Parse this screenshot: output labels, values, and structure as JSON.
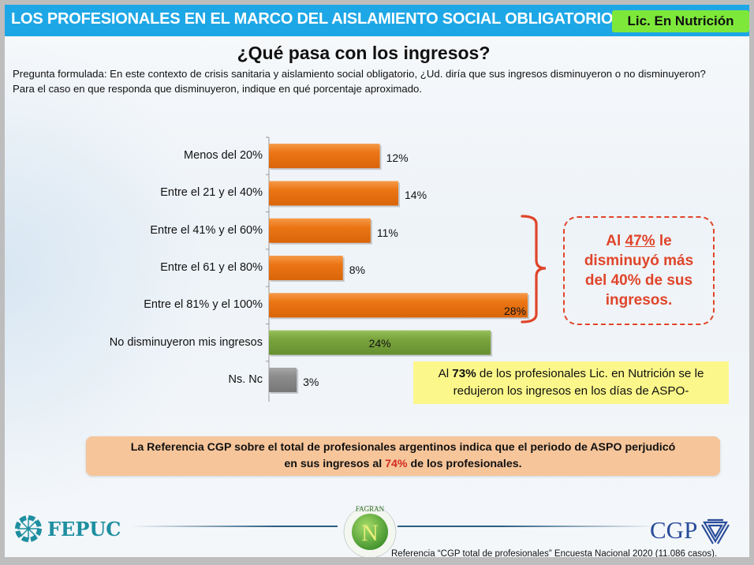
{
  "header": {
    "title": "LOS PROFESIONALES EN EL MARCO DEL AISLAMIENTO SOCIAL OBLIGATORIO",
    "badge": "Lic. En Nutrición"
  },
  "subtitle": "¿Qué pasa con los ingresos?",
  "question": "Pregunta formulada: En este contexto de crisis sanitaria y aislamiento social obligatorio, ¿Ud. diría que sus ingresos disminuyeron o no disminuyeron? Para el caso en que responda que disminuyeron, indique en qué porcentaje aproximado.",
  "chart_data": {
    "type": "bar",
    "orientation": "horizontal",
    "title": "¿Qué pasa con los ingresos?",
    "xlabel": "",
    "ylabel": "",
    "xlim": [
      0,
      28
    ],
    "grid": false,
    "legend": "none",
    "categories": [
      "Menos del 20%",
      "Entre el 21 y el 40%",
      "Entre el 41% y el 60%",
      "Entre el 61 y el 80%",
      "Entre el 81% y el 100%",
      "No disminuyeron mis ingresos",
      "Ns. Nc"
    ],
    "values": [
      12,
      14,
      11,
      8,
      28,
      24,
      3
    ],
    "value_labels": [
      "12%",
      "14%",
      "11%",
      "8%",
      "28%",
      "24%",
      "3%"
    ],
    "bar_colors": [
      "#ec7615",
      "#ec7615",
      "#ec7615",
      "#ec7615",
      "#ec7615",
      "#78a33c",
      "#8c8c8c"
    ]
  },
  "callout": {
    "prefix": "Al ",
    "highlight": "47%",
    "line1_suffix": " le",
    "line2": "disminuyó  más",
    "line3": "del 40% de sus",
    "line4": "ingresos."
  },
  "yellow_note": {
    "prefix": "Al ",
    "highlight": "73%",
    "line1_suffix": " de los profesionales Lic. en Nutrición se le",
    "line2": "redujeron los ingresos en los días de ASPO-"
  },
  "reference_box": {
    "line1": "La Referencia CGP  sobre el total de profesionales argentinos indica que el periodo de ASPO perjudicó",
    "line2_prefix": "en sus ingresos al ",
    "highlight": "74%",
    "line2_suffix": " de los profesionales."
  },
  "footer": {
    "logo_left": "FEPUC",
    "logo_center": "FAGRAN",
    "logo_center_letter": "N",
    "logo_right": "CGP",
    "footnote": "Referencia “CGP total de profesionales” Encuesta Nacional 2020 (11.086 casos)."
  },
  "colors": {
    "header_bg": "#1ea7e6",
    "badge_bg": "#7de83a",
    "accent_red": "#e0452a",
    "yellow_bg": "#fcf78a",
    "ref_bg": "#f6c59a"
  }
}
